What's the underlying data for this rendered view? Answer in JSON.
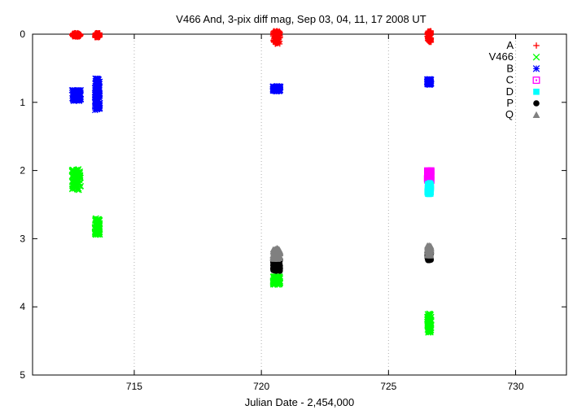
{
  "chart_data": {
    "type": "scatter",
    "title": "V466 And,  3-pix diff mag, Sep 03, 04, 11, 17 2008 UT",
    "xlabel": "Julian Date - 2,454,000",
    "ylabel": "",
    "xlim": [
      711,
      732
    ],
    "ylim": [
      0,
      5
    ],
    "y_inverted": true,
    "x_ticks": [
      715,
      720,
      725,
      730
    ],
    "y_ticks": [
      0,
      1,
      2,
      3,
      4,
      5
    ],
    "grid": "dotted vertical at x ticks",
    "legend_position": "top-right",
    "series": [
      {
        "name": "A",
        "color": "#ff0000",
        "marker": "plus",
        "clusters": [
          {
            "x": [
              712.55,
              712.9
            ],
            "y": [
              -0.02,
              0.04
            ]
          },
          {
            "x": [
              713.45,
              713.65
            ],
            "y": [
              -0.02,
              0.05
            ]
          },
          {
            "x": [
              720.45,
              720.75
            ],
            "y": [
              -0.05,
              0.15
            ]
          },
          {
            "x": [
              726.52,
              726.68
            ],
            "y": [
              -0.05,
              0.12
            ]
          }
        ]
      },
      {
        "name": "V466",
        "color": "#00ff00",
        "marker": "cross",
        "clusters": [
          {
            "x": [
              712.55,
              712.9
            ],
            "y": [
              1.98,
              2.3
            ]
          },
          {
            "x": [
              713.45,
              713.65
            ],
            "y": [
              2.7,
              2.95
            ]
          },
          {
            "x": [
              720.45,
              720.75
            ],
            "y": [
              3.55,
              3.68
            ]
          },
          {
            "x": [
              726.52,
              726.68
            ],
            "y": [
              4.1,
              4.38
            ]
          }
        ]
      },
      {
        "name": "B",
        "color": "#0000ff",
        "marker": "star",
        "clusters": [
          {
            "x": [
              712.55,
              712.9
            ],
            "y": [
              0.82,
              0.98
            ]
          },
          {
            "x": [
              713.45,
              713.65
            ],
            "y": [
              0.65,
              1.12
            ]
          },
          {
            "x": [
              720.45,
              720.75
            ],
            "y": [
              0.76,
              0.84
            ]
          },
          {
            "x": [
              726.52,
              726.68
            ],
            "y": [
              0.66,
              0.74
            ]
          }
        ]
      },
      {
        "name": "C",
        "color": "#ff00ff",
        "marker": "square",
        "clusters": [
          {
            "x": [
              726.52,
              726.68
            ],
            "y": [
              2.0,
              2.15
            ]
          }
        ]
      },
      {
        "name": "D",
        "color": "#00ffff",
        "marker": "filled-square",
        "clusters": [
          {
            "x": [
              726.52,
              726.68
            ],
            "y": [
              2.18,
              2.35
            ]
          }
        ]
      },
      {
        "name": "P",
        "color": "#000000",
        "marker": "circle",
        "clusters": [
          {
            "x": [
              720.45,
              720.75
            ],
            "y": [
              3.3,
              3.48
            ]
          },
          {
            "x": [
              726.52,
              726.68
            ],
            "y": [
              3.2,
              3.32
            ]
          }
        ]
      },
      {
        "name": "Q",
        "color": "#808080",
        "marker": "triangle",
        "clusters": [
          {
            "x": [
              720.45,
              720.75
            ],
            "y": [
              3.14,
              3.3
            ]
          },
          {
            "x": [
              726.52,
              726.68
            ],
            "y": [
              3.1,
              3.25
            ]
          }
        ]
      }
    ]
  }
}
